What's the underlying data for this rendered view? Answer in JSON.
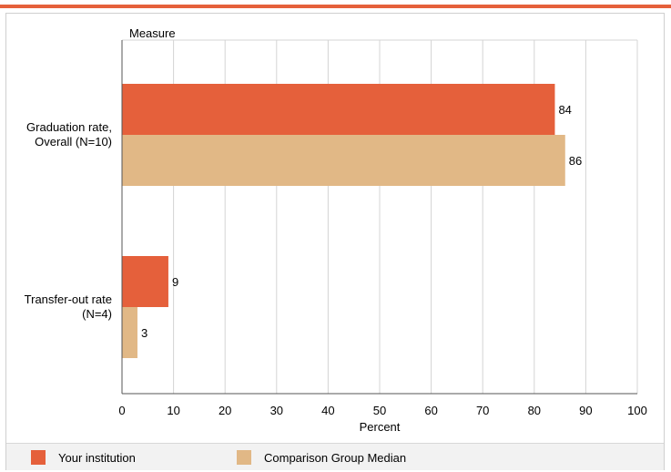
{
  "chart_data": {
    "type": "bar",
    "orientation": "horizontal",
    "title": "",
    "category_axis_label": "Measure",
    "xlabel": "Percent",
    "xlim": [
      0,
      100
    ],
    "x_ticks": [
      0,
      10,
      20,
      30,
      40,
      50,
      60,
      70,
      80,
      90,
      100
    ],
    "grid": true,
    "legend_position": "bottom",
    "categories": [
      [
        "Graduation rate,",
        "Overall (N=10)"
      ],
      [
        "Transfer-out rate",
        "(N=4)"
      ]
    ],
    "series": [
      {
        "name": "Your institution",
        "color": "#E5603B",
        "values": [
          84,
          9
        ]
      },
      {
        "name": "Comparison Group Median",
        "color": "#E1B886",
        "values": [
          86,
          3
        ]
      }
    ]
  }
}
